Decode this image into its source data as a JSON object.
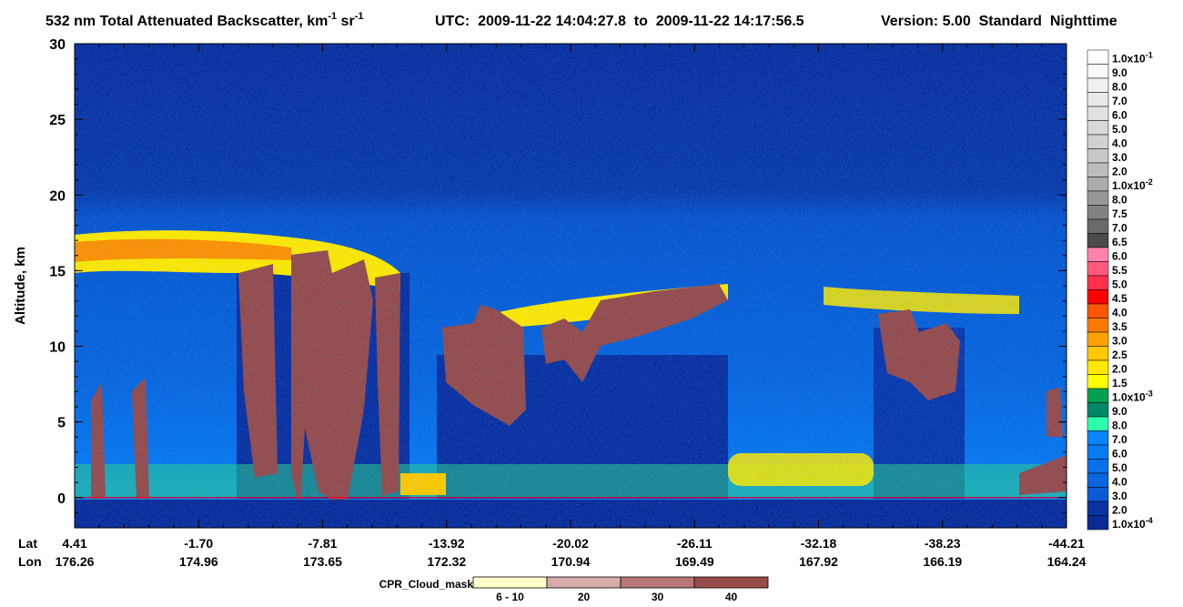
{
  "title": {
    "main": "532 nm Total Attenuated Backscatter, km",
    "sup1": "-1",
    "unit2": " sr",
    "sup2": "-1"
  },
  "utc": "UTC:  2009-11-22 14:04:27.8  to  2009-11-22 14:17:56.5",
  "version": "Version: 5.00  Standard  Nighttime",
  "chart_data": {
    "type": "heatmap",
    "ylabel": "Altitude, km",
    "ylim": [
      -2,
      30
    ],
    "yticks": [
      0,
      5,
      10,
      15,
      20,
      25,
      30
    ],
    "x_row_labels": [
      "Lat",
      "Lon"
    ],
    "lat": [
      "4.41",
      "-1.70",
      "-7.81",
      "-13.92",
      "-20.02",
      "-26.11",
      "-32.18",
      "-38.23",
      "-44.21"
    ],
    "lon": [
      "176.26",
      "174.96",
      "173.65",
      "172.32",
      "170.94",
      "169.49",
      "167.92",
      "166.19",
      "164.24"
    ],
    "surface_line_color": "#e0002a",
    "colorbar": [
      {
        "label": "1.0x10",
        "sup": "-1",
        "color": "#ffffff"
      },
      {
        "label": "9.0",
        "color": "#f9f9f9"
      },
      {
        "label": "8.0",
        "color": "#f1f1f1"
      },
      {
        "label": "7.0",
        "color": "#e9e9e9"
      },
      {
        "label": "6.0",
        "color": "#e1e1e1"
      },
      {
        "label": "5.0",
        "color": "#d9d9d9"
      },
      {
        "label": "4.0",
        "color": "#d1d1d1"
      },
      {
        "label": "3.0",
        "color": "#c8c8c8"
      },
      {
        "label": "2.0",
        "color": "#bcbcbc"
      },
      {
        "label": "1.0x10",
        "sup": "-2",
        "color": "#acacac"
      },
      {
        "label": "8.0",
        "color": "#989898"
      },
      {
        "label": "7.5",
        "color": "#828282"
      },
      {
        "label": "7.0",
        "color": "#6a6a6a"
      },
      {
        "label": "6.5",
        "color": "#4b4b4b"
      },
      {
        "label": "6.0",
        "color": "#ff82aa"
      },
      {
        "label": "5.5",
        "color": "#ff5a7c"
      },
      {
        "label": "5.0",
        "color": "#ff2f4e"
      },
      {
        "label": "4.5",
        "color": "#ff0000"
      },
      {
        "label": "4.0",
        "color": "#ff5500"
      },
      {
        "label": "3.5",
        "color": "#ff7a00"
      },
      {
        "label": "3.0",
        "color": "#ffa200"
      },
      {
        "label": "2.5",
        "color": "#ffc800"
      },
      {
        "label": "2.0",
        "color": "#ffe800"
      },
      {
        "label": "1.5",
        "color": "#ffff00"
      },
      {
        "label": "1.0x10",
        "sup": "-3",
        "color": "#00a04e"
      },
      {
        "label": "9.0",
        "color": "#00876a"
      },
      {
        "label": "8.0",
        "color": "#2bffae"
      },
      {
        "label": "7.0",
        "color": "#0a84ff"
      },
      {
        "label": "6.0",
        "color": "#0a7af2"
      },
      {
        "label": "5.0",
        "color": "#0a70e8"
      },
      {
        "label": "4.0",
        "color": "#0a66de"
      },
      {
        "label": "3.0",
        "color": "#0a5cd4"
      },
      {
        "label": "2.0",
        "color": "#0a34a2"
      },
      {
        "label": "1.0x10",
        "sup": "-4",
        "color": "#0a2a96"
      }
    ],
    "cpr_legend": {
      "title": "CPR_Cloud_mask",
      "items": [
        {
          "label": "6 - 10",
          "color": "#ffffc8"
        },
        {
          "label": "20",
          "color": "#d8a9a9"
        },
        {
          "label": "30",
          "color": "#b87777"
        },
        {
          "label": "40",
          "color": "#974b4b"
        }
      ]
    }
  }
}
